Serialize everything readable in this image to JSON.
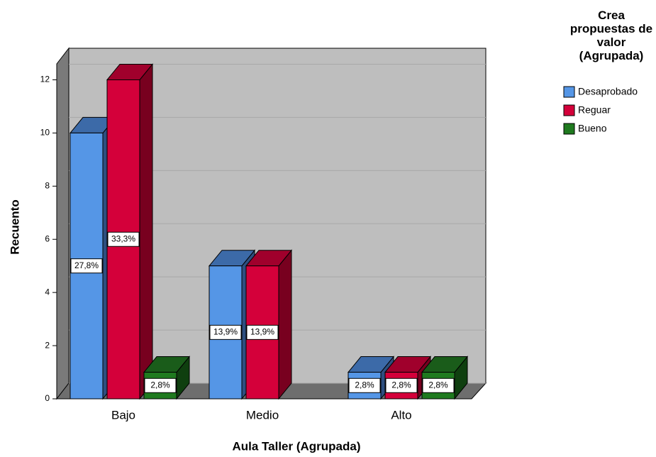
{
  "chart_data": {
    "type": "bar3d",
    "x_label": "Aula Taller (Agrupada)",
    "y_label": "Recuento",
    "legend_title": "Crea propuestas de valor (Agrupada)",
    "categories": [
      "Bajo",
      "Medio",
      "Alto"
    ],
    "series": [
      {
        "name": "Desaprobado",
        "color": "#5596e6",
        "top_color": "#3c6aa8",
        "side_color": "#2e4f80",
        "values": [
          10,
          5,
          1
        ],
        "percent_labels": [
          "27,8%",
          "13,9%",
          "2,8%"
        ]
      },
      {
        "name": "Reguar",
        "color": "#d4003a",
        "top_color": "#a0002c",
        "side_color": "#78001f",
        "values": [
          12,
          5,
          1
        ],
        "percent_labels": [
          "33,3%",
          "13,9%",
          "2,8%"
        ]
      },
      {
        "name": "Bueno",
        "color": "#1f7a1f",
        "top_color": "#1a5c1a",
        "side_color": "#0f3f0f",
        "values": [
          1,
          null,
          1
        ],
        "percent_labels": [
          "2,8%",
          null,
          "2,8%"
        ]
      }
    ],
    "ylim": [
      0,
      12.6
    ],
    "yticks": [
      0,
      2,
      4,
      6,
      8,
      10,
      12
    ],
    "grid": true,
    "legend": "right"
  }
}
